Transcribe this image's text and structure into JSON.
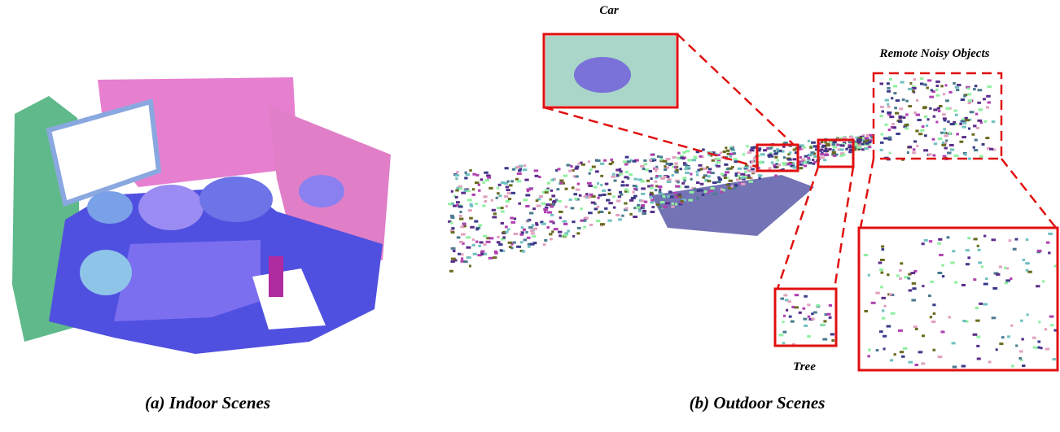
{
  "indoor": {
    "caption": "(a) Indoor Scenes"
  },
  "outdoor": {
    "caption": "(b) Outdoor Scenes",
    "labels": {
      "car": "Car",
      "remote": "Remote Noisy Objects",
      "tree": "Tree"
    }
  }
}
